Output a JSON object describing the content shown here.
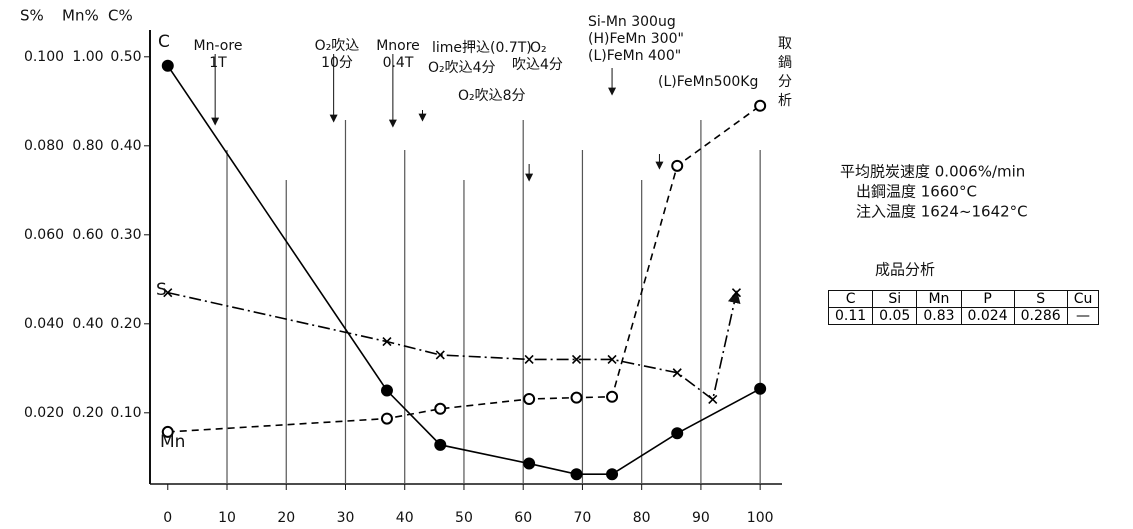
{
  "chart_data": {
    "type": "line",
    "axis_titles": {
      "y3": "S%",
      "y2": "Mn%",
      "y": "C%"
    },
    "xlim": [
      -3,
      102
    ],
    "xticks": [
      0,
      10,
      20,
      30,
      40,
      50,
      60,
      70,
      80,
      90,
      100
    ],
    "ylim": [
      0.02,
      0.52
    ],
    "yticks": [
      {
        "value": 0.1,
        "label": "0.10"
      },
      {
        "value": 0.2,
        "label": "0.20"
      },
      {
        "value": 0.3,
        "label": "0.30"
      },
      {
        "value": 0.4,
        "label": "0.40"
      },
      {
        "value": 0.5,
        "label": "0.50"
      }
    ],
    "y2lim": [
      0.04,
      1.04
    ],
    "y2ticks": [
      {
        "value": 0.2,
        "label": "0.20"
      },
      {
        "value": 0.4,
        "label": "0.40"
      },
      {
        "value": 0.6,
        "label": "0.60"
      },
      {
        "value": 0.8,
        "label": "0.80"
      },
      {
        "value": 1.0,
        "label": "1.00"
      }
    ],
    "y3lim": [
      0.004,
      0.104
    ],
    "y3ticks": [
      {
        "value": 0.02,
        "label": "0.020"
      },
      {
        "value": 0.04,
        "label": "0.040"
      },
      {
        "value": 0.06,
        "label": "0.060"
      },
      {
        "value": 0.08,
        "label": "0.080"
      },
      {
        "value": 0.1,
        "label": "0.100"
      }
    ],
    "grid": true,
    "series": [
      {
        "name": "C",
        "color": "#000000",
        "axis": "y",
        "marker": "filled-circle",
        "dash": "solid",
        "x": [
          0,
          37,
          46,
          61,
          69,
          75,
          86,
          100
        ],
        "values": [
          0.49,
          0.125,
          0.064,
          0.043,
          0.031,
          0.031,
          0.077,
          0.127
        ]
      },
      {
        "name": "S",
        "color": "#000000",
        "axis": "y3",
        "marker": "x",
        "dash": "dashdot",
        "arrow": true,
        "x": [
          0,
          37,
          46,
          61,
          69,
          75,
          86,
          92,
          96
        ],
        "values": [
          0.047,
          0.036,
          0.033,
          0.032,
          0.032,
          0.032,
          0.029,
          0.023,
          0.047
        ]
      },
      {
        "name": "Mn",
        "color": "#000000",
        "axis": "y2",
        "marker": "open-circle",
        "dash": "dashed",
        "x": [
          0,
          37,
          46,
          61,
          69,
          75,
          86,
          100
        ],
        "values": [
          0.157,
          0.187,
          0.209,
          0.231,
          0.234,
          0.236,
          0.755,
          0.89
        ]
      }
    ],
    "annotations": [
      {
        "lines": [
          "Mn-ore",
          "1T"
        ],
        "x": 8
      },
      {
        "lines": [
          "O₂吹込",
          "10分"
        ],
        "x": 28
      },
      {
        "lines": [
          "Mnore",
          "0.4T"
        ],
        "x": 38
      },
      {
        "lines": [
          "lime押込(0.7T)"
        ],
        "x": 43
      },
      {
        "lines": [
          "O₂吹込4分"
        ]
      },
      {
        "lines": [
          "O₂吹込8分"
        ],
        "x": 61
      },
      {
        "lines": [
          "O₂",
          "吹込4分"
        ]
      },
      {
        "lines": [
          "Si-Mn 300ug",
          "(H)FeMn 300\"",
          "(L)FeMn 400\""
        ],
        "x": 75
      },
      {
        "lines": [
          "(L)FeMn500Kg"
        ],
        "x": 83
      },
      {
        "lines": [
          "取",
          "鍋",
          "分",
          "析"
        ]
      }
    ]
  },
  "notes": [
    "平均脱炭速度 0.006%/min",
    "出鋼温度 1660°C",
    "注入温度 1624~1642°C"
  ],
  "table": {
    "title": "成品分析",
    "header": [
      "C",
      "Si",
      "Mn",
      "P",
      "S",
      "Cu"
    ],
    "rows": [
      [
        0.11,
        0.05,
        0.83,
        0.024,
        0.286,
        "—"
      ]
    ]
  }
}
